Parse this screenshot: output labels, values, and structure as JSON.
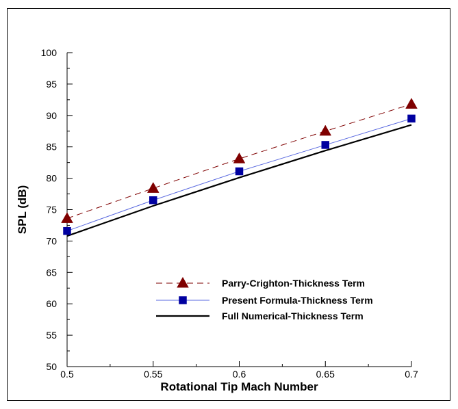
{
  "chart_data": {
    "type": "line",
    "xlabel": "Rotational Tip Mach Number",
    "ylabel": "SPL (dB)",
    "xlim": [
      0.5,
      0.7
    ],
    "ylim": [
      50,
      100
    ],
    "xticks": [
      0.5,
      0.55,
      0.6,
      0.65,
      0.7
    ],
    "xtick_labels": [
      "0.5",
      "0.55",
      "0.6",
      "0.65",
      "0.7"
    ],
    "yticks": [
      50,
      55,
      60,
      65,
      70,
      75,
      80,
      85,
      90,
      95,
      100
    ],
    "ytick_labels": [
      "50",
      "55",
      "60",
      "65",
      "70",
      "75",
      "80",
      "85",
      "90",
      "95",
      "100"
    ],
    "grid": false,
    "legend_position": "lower-right",
    "x": [
      0.5,
      0.55,
      0.6,
      0.65,
      0.7
    ],
    "series": [
      {
        "name": "Parry-Crighton-Thickness Term",
        "values": [
          73.6,
          78.4,
          83.1,
          87.5,
          91.8
        ],
        "color": "#7f0000",
        "line_style": "dashed",
        "marker": "triangle"
      },
      {
        "name": "Present Formula-Thickness Term",
        "values": [
          71.6,
          76.5,
          81.1,
          85.3,
          89.5
        ],
        "color": "#0000a0",
        "line_color": "#5a6ae0",
        "line_style": "solid",
        "marker": "square"
      },
      {
        "name": "Full Numerical-Thickness Term",
        "values": [
          70.8,
          75.6,
          80.1,
          84.4,
          88.5
        ],
        "color": "#000000",
        "line_style": "solid-thick",
        "marker": "none"
      }
    ]
  }
}
